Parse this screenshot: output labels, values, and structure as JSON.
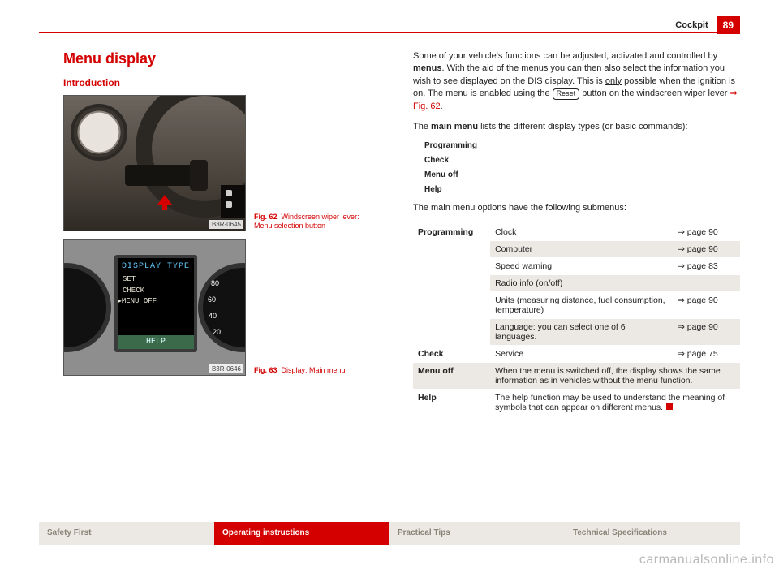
{
  "header": {
    "section": "Cockpit",
    "page_number": "89"
  },
  "left": {
    "title": "Menu display",
    "subtitle": "Introduction",
    "fig62": {
      "caption_prefix": "Fig. 62",
      "caption": "Windscreen wiper lever: Menu selection button",
      "image_tag": "B3R-0645",
      "arrow_color": "#d40000"
    },
    "fig63": {
      "caption_prefix": "Fig. 63",
      "caption": "Display: Main menu",
      "image_tag": "B3R-0646",
      "screen": {
        "title": "DISPLAY TYPE",
        "items": [
          "SET",
          "CHECK",
          "MENU OFF"
        ],
        "selected_index": 2,
        "help": "HELP"
      },
      "gauge_ticks": [
        "80",
        "60",
        "40",
        "20"
      ]
    }
  },
  "right": {
    "intro_para_pre": "Some of your vehicle's functions can be adjusted, activated and controlled by ",
    "intro_strong": "menus",
    "intro_para_mid": ". With the aid of the menus you can then also select the information you wish to see displayed on the DIS display. This is ",
    "intro_underline": "only",
    "intro_para_post1": " possible when the ignition is on. The menu is enabled using the ",
    "reset_key": "Reset",
    "intro_para_post2": " button on the windscreen wiper lever ",
    "fig_ref": "⇒ Fig. 62",
    "main_menu_line_pre": "The ",
    "main_menu_strong": "main menu",
    "main_menu_line_post": " lists the different display types (or basic commands):",
    "menu_items": [
      "Programming",
      "Check",
      "Menu off",
      "Help"
    ],
    "submenu_intro": "The main menu options have the following submenus:",
    "table": {
      "rows": [
        {
          "cat": "Programming",
          "item": "Clock",
          "page": "⇒ page 90",
          "alt": false,
          "rowspan": 6
        },
        {
          "cat": "",
          "item": "Computer",
          "page": "⇒ page 90",
          "alt": true
        },
        {
          "cat": "",
          "item": "Speed warning",
          "page": "⇒ page 83",
          "alt": false
        },
        {
          "cat": "",
          "item": "Radio info (on/off)",
          "page": "",
          "alt": true
        },
        {
          "cat": "",
          "item": "Units (measuring distance, fuel consumption, temperature)",
          "page": "⇒ page 90",
          "alt": false
        },
        {
          "cat": "",
          "item": "Language: you can select one of 6 languages.",
          "page": "⇒ page 90",
          "alt": true
        },
        {
          "cat": "Check",
          "item": "Service",
          "page": "⇒ page 75",
          "alt": false,
          "rowspan": 1
        },
        {
          "cat": "Menu off",
          "item": "When the menu is switched off, the display shows the same information as in vehicles without the menu function.",
          "page": "",
          "alt": true,
          "rowspan": 1,
          "span": true
        },
        {
          "cat": "Help",
          "item": "The help function may be used to understand the meaning of symbols that can appear on different menus.",
          "page": "",
          "alt": false,
          "rowspan": 1,
          "span": true,
          "endmark": true
        }
      ]
    }
  },
  "footer": {
    "tabs": [
      {
        "label": "Safety First",
        "active": false
      },
      {
        "label": "Operating instructions",
        "active": true
      },
      {
        "label": "Practical Tips",
        "active": false
      },
      {
        "label": "Technical Specifications",
        "active": false
      }
    ]
  },
  "watermark": "carmanualsonline.info"
}
